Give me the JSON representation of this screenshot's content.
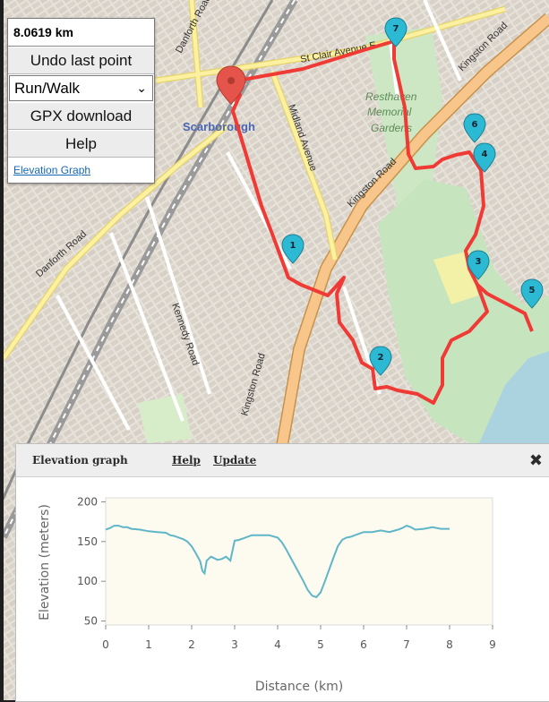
{
  "panel": {
    "distance": "8.0619 km",
    "undo_label": "Undo last point",
    "mode_value": "Run/Walk",
    "gpx_label": "GPX download",
    "help_label": "Help",
    "elevation_link": "Elevation Graph"
  },
  "map": {
    "labels": {
      "danforth_top": "Danforth Road",
      "danforth_left": "Danforth Road",
      "st_clair": "St Clair Avenue E",
      "kingston_top": "Kingston Road",
      "kingston_mid": "Kingston Road",
      "kingston_low": "Kingston Road",
      "midland": "Midland Avenue",
      "kennedy": "Kennedy Road",
      "scarborough": "Scarborough",
      "resthaven_1": "Resthaven",
      "resthaven_2": "Memorial",
      "resthaven_3": "Gardens"
    },
    "markers": [
      "1",
      "2",
      "3",
      "4",
      "5",
      "6",
      "7"
    ],
    "colors": {
      "route": "#f03a36",
      "marker": "#2bb9d3",
      "start": "#e4544a"
    }
  },
  "elevation": {
    "title": "Elevation graph",
    "help_link": "Help",
    "update_link": "Update",
    "close": "✖"
  },
  "chart_data": {
    "type": "line",
    "xlabel": "Distance (km)",
    "ylabel": "Elevation (meters)",
    "xlim": [
      0,
      9
    ],
    "ylim": [
      45,
      205
    ],
    "xticks": [
      "0",
      "1",
      "2",
      "3",
      "4",
      "5",
      "6",
      "7",
      "8",
      "9"
    ],
    "yticks": [
      "50",
      "100",
      "150",
      "200"
    ],
    "color": "#5fb6c8",
    "series": [
      {
        "x": [
          0,
          0.1,
          0.2,
          0.3,
          0.4,
          0.5,
          0.6,
          0.8,
          1.0,
          1.2,
          1.4,
          1.5,
          1.6,
          1.7,
          1.8,
          1.9,
          2.0,
          2.1,
          2.2,
          2.25,
          2.3,
          2.35,
          2.45,
          2.6,
          2.7,
          2.8,
          2.9,
          3.0,
          3.1,
          3.2,
          3.4,
          3.6,
          3.8,
          4.0,
          4.1,
          4.2,
          4.3,
          4.4,
          4.5,
          4.6,
          4.7,
          4.8,
          4.9,
          5.0,
          5.1,
          5.2,
          5.3,
          5.4,
          5.5,
          5.6,
          5.7,
          5.8,
          6.0,
          6.2,
          6.4,
          6.6,
          6.8,
          6.9,
          7.0,
          7.1,
          7.2,
          7.4,
          7.6,
          7.8,
          8.0
        ],
        "y": [
          165,
          167,
          170,
          170,
          168,
          168,
          166,
          165,
          163,
          162,
          161,
          158,
          157,
          155,
          153,
          150,
          144,
          135,
          125,
          113,
          110,
          126,
          131,
          127,
          128,
          131,
          126,
          151,
          152,
          154,
          158,
          158,
          158,
          155,
          149,
          140,
          130,
          120,
          110,
          100,
          89,
          82,
          80,
          86,
          100,
          115,
          130,
          144,
          152,
          155,
          156,
          158,
          162,
          162,
          164,
          162,
          165,
          167,
          170,
          168,
          165,
          166,
          168,
          166,
          166
        ]
      }
    ]
  }
}
